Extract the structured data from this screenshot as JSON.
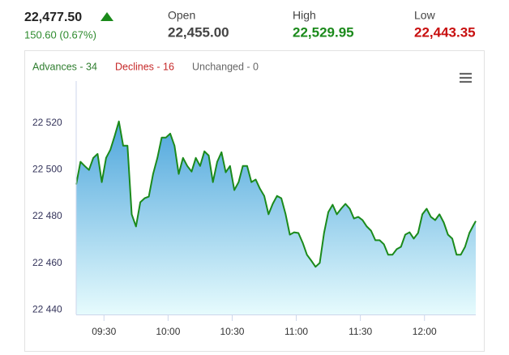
{
  "header": {
    "price": "22,477.50",
    "change": "150.60 (0.67%)",
    "stats": [
      {
        "label": "Open",
        "value": "22,455.00"
      },
      {
        "label": "High",
        "value": "22,529.95"
      },
      {
        "label": "Low",
        "value": "22,443.35"
      }
    ],
    "breadth": [
      "Advances - 34",
      "Declines - 16",
      "Unchanged - 0"
    ]
  },
  "chart_data": {
    "type": "area",
    "color": "#1b8a1b",
    "x": [
      557,
      559,
      561,
      563,
      565,
      567,
      569,
      571,
      573,
      575,
      577,
      579,
      581,
      583,
      585,
      587,
      589,
      591,
      593,
      595,
      597,
      599,
      601,
      603,
      605,
      607,
      609,
      611,
      613,
      615,
      617,
      619,
      621,
      623,
      625,
      627,
      629,
      631,
      633,
      635,
      637,
      639,
      641,
      643,
      645,
      647,
      649,
      651,
      653,
      655,
      657,
      659,
      661,
      663,
      665,
      667,
      669,
      671,
      673,
      675,
      677,
      679,
      681,
      683,
      685,
      687,
      689,
      691,
      693,
      695,
      697,
      699,
      701,
      703,
      705,
      707,
      709,
      711,
      713,
      715,
      717,
      719,
      721,
      723,
      725,
      727,
      729,
      731,
      733,
      735,
      737,
      739,
      741,
      743,
      744
    ],
    "values": [
      22493.7,
      22503.4,
      22501.6,
      22499.9,
      22505.1,
      22506.8,
      22494.7,
      22505.1,
      22508.6,
      22514.5,
      22520.7,
      22510.3,
      22510.3,
      22480.9,
      22475.7,
      22486.1,
      22487.8,
      22488.5,
      22498.2,
      22505.1,
      22513.8,
      22513.8,
      22515.5,
      22510.3,
      22498.2,
      22505.1,
      22501.6,
      22499.2,
      22505.1,
      22501.6,
      22507.9,
      22506.1,
      22494.7,
      22503.4,
      22507.5,
      22498.9,
      22501.6,
      22491.3,
      22494.7,
      22501.6,
      22501.6,
      22494.7,
      22495.8,
      22491.9,
      22488.8,
      22480.9,
      22485.4,
      22488.8,
      22487.8,
      22480.9,
      22472.2,
      22473.2,
      22472.9,
      22468.7,
      22463.6,
      22461.1,
      22458.4,
      22460.1,
      22472.9,
      22481.9,
      22485.0,
      22480.9,
      22483.3,
      22485.4,
      22483.3,
      22479.1,
      22479.8,
      22478.4,
      22475.7,
      22473.9,
      22469.8,
      22469.8,
      22468.1,
      22463.6,
      22463.6,
      22466.0,
      22467.0,
      22472.2,
      22473.2,
      22470.5,
      22472.9,
      22480.9,
      22483.3,
      22479.8,
      22478.4,
      22480.9,
      22477.4,
      22472.2,
      22470.5,
      22463.6,
      22463.6,
      22467.0,
      22472.9,
      22476.4,
      22478.0
    ],
    "xlim": [
      557,
      744
    ],
    "xticks": [
      {
        "value": 570,
        "label": "09:30"
      },
      {
        "value": 600,
        "label": "10:00"
      },
      {
        "value": 630,
        "label": "10:30"
      },
      {
        "value": 660,
        "label": "11:00"
      },
      {
        "value": 690,
        "label": "11:30"
      },
      {
        "value": 720,
        "label": "12:00"
      }
    ],
    "ylim": [
      22438,
      22538
    ],
    "yticks": [
      {
        "value": 22440,
        "label": "22 440"
      },
      {
        "value": 22460,
        "label": "22 460"
      },
      {
        "value": 22480,
        "label": "22 480"
      },
      {
        "value": 22500,
        "label": "22 500"
      },
      {
        "value": 22520,
        "label": "22 520"
      }
    ],
    "grid": false
  }
}
